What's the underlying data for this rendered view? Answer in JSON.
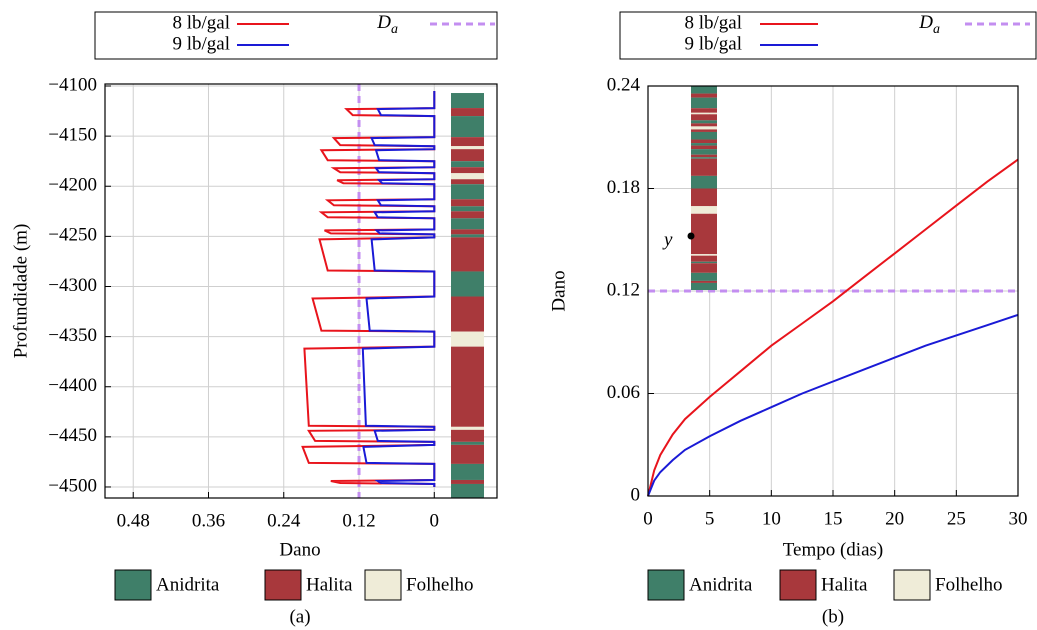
{
  "chart_data": [
    {
      "type": "line",
      "panel_label": "(a)",
      "xlabel": "Dano",
      "ylabel": "Profundidade (m)",
      "xlim": [
        0.525,
        -0.1
      ],
      "xticks": [
        0.48,
        0.36,
        0.24,
        0.12,
        0
      ],
      "ylim": [
        -4511,
        -4098
      ],
      "yticks": [
        {
          "value": -4100,
          "label": "−4100"
        },
        {
          "value": -4150,
          "label": "−4150"
        },
        {
          "value": -4200,
          "label": "−4200"
        },
        {
          "value": -4250,
          "label": "−4250"
        },
        {
          "value": -4300,
          "label": "−4300"
        },
        {
          "value": -4350,
          "label": "−4350"
        },
        {
          "value": -4400,
          "label": "−4400"
        },
        {
          "value": -4450,
          "label": "−4450"
        },
        {
          "value": -4500,
          "label": "−4500"
        }
      ],
      "grid": true,
      "series": [
        {
          "name": "8 lb/gal",
          "color": "#e8141c",
          "x": [
            0,
            0,
            0.14,
            0.13,
            0,
            0,
            0.16,
            0.15,
            0,
            0,
            0.18,
            0.17,
            0,
            0,
            0.16,
            0.15,
            0,
            0,
            0.155,
            0.145,
            0,
            0,
            0.17,
            0.16,
            0,
            0,
            0.18,
            0.17,
            0,
            0,
            0.175,
            0.165,
            0,
            0,
            0.183,
            0.17,
            0,
            0,
            0.194,
            0.18,
            0,
            0,
            0.207,
            0.2,
            0,
            0,
            0.2,
            0.19,
            0,
            0,
            0.21,
            0.2,
            0,
            0,
            0.165,
            0.15,
            0,
            0
          ],
          "y": [
            -4105,
            -4122,
            -4123,
            -4129,
            -4130,
            -4151,
            -4152,
            -4159,
            -4160,
            -4163,
            -4164,
            -4174,
            -4175,
            -4181,
            -4182,
            -4186,
            -4187,
            -4193,
            -4194,
            -4197,
            -4198,
            -4213,
            -4214,
            -4219,
            -4220,
            -4225,
            -4226,
            -4231,
            -4232,
            -4243,
            -4244,
            -4247,
            -4248,
            -4251,
            -4253,
            -4284,
            -4285,
            -4310,
            -4312,
            -4344,
            -4345,
            -4360,
            -4362,
            -4439,
            -4440,
            -4443,
            -4444,
            -4454,
            -4455,
            -4458,
            -4460,
            -4476,
            -4477,
            -4493,
            -4494,
            -4496,
            -4497,
            -4500
          ]
        },
        {
          "name": "9 lb/gal",
          "color": "#1a1ad6",
          "x": [
            0,
            0,
            0.09,
            0.085,
            0,
            0,
            0.1,
            0.095,
            0,
            0,
            0.093,
            0.088,
            0,
            0,
            0.093,
            0.088,
            0,
            0,
            0.088,
            0.083,
            0,
            0,
            0.09,
            0.085,
            0,
            0,
            0.095,
            0.09,
            0,
            0,
            0.092,
            0.087,
            0,
            0,
            0.1,
            0.095,
            0,
            0,
            0.108,
            0.103,
            0,
            0,
            0.114,
            0.109,
            0,
            0,
            0.095,
            0.09,
            0,
            0,
            0.113,
            0.108,
            0,
            0,
            0.09,
            0.085,
            0,
            0
          ],
          "y": [
            -4105,
            -4122,
            -4123,
            -4129,
            -4130,
            -4151,
            -4152,
            -4159,
            -4160,
            -4163,
            -4164,
            -4174,
            -4175,
            -4181,
            -4182,
            -4186,
            -4187,
            -4193,
            -4194,
            -4197,
            -4198,
            -4213,
            -4214,
            -4219,
            -4220,
            -4225,
            -4226,
            -4231,
            -4232,
            -4243,
            -4244,
            -4247,
            -4248,
            -4251,
            -4253,
            -4284,
            -4285,
            -4310,
            -4312,
            -4344,
            -4345,
            -4360,
            -4362,
            -4439,
            -4440,
            -4443,
            -4444,
            -4454,
            -4455,
            -4458,
            -4460,
            -4476,
            -4477,
            -4493,
            -4494,
            -4496,
            -4497,
            -4500
          ]
        }
      ],
      "threshold": {
        "name": "D",
        "subscript": "a",
        "value": 0.12,
        "color": "#c38ef0",
        "orientation": "vertical"
      },
      "strata": [
        [
          -4107,
          -4122,
          0
        ],
        [
          -4122,
          -4130,
          1
        ],
        [
          -4130,
          -4151,
          0
        ],
        [
          -4151,
          -4160,
          1
        ],
        [
          -4160,
          -4163,
          2
        ],
        [
          -4163,
          -4175,
          1
        ],
        [
          -4175,
          -4181,
          0
        ],
        [
          -4181,
          -4187,
          1
        ],
        [
          -4187,
          -4193,
          2
        ],
        [
          -4193,
          -4198,
          1
        ],
        [
          -4198,
          -4213,
          0
        ],
        [
          -4213,
          -4220,
          1
        ],
        [
          -4220,
          -4225,
          0
        ],
        [
          -4225,
          -4232,
          1
        ],
        [
          -4232,
          -4243,
          0
        ],
        [
          -4243,
          -4248,
          1
        ],
        [
          -4248,
          -4251,
          0
        ],
        [
          -4251,
          -4285,
          1
        ],
        [
          -4285,
          -4310,
          0
        ],
        [
          -4310,
          -4345,
          1
        ],
        [
          -4345,
          -4360,
          2
        ],
        [
          -4360,
          -4440,
          1
        ],
        [
          -4440,
          -4443,
          2
        ],
        [
          -4443,
          -4455,
          1
        ],
        [
          -4455,
          -4458,
          0
        ],
        [
          -4458,
          -4477,
          1
        ],
        [
          -4477,
          -4493,
          0
        ],
        [
          -4493,
          -4497,
          1
        ],
        [
          -4497,
          -4511,
          0
        ]
      ],
      "strata_legend": [
        {
          "name": "Anidrita",
          "color": "#3f7f69"
        },
        {
          "name": "Halita",
          "color": "#a8383c"
        },
        {
          "name": "Folhelho",
          "color": "#efecd8"
        }
      ]
    },
    {
      "type": "line",
      "panel_label": "(b)",
      "xlabel": "Tempo (dias)",
      "ylabel": "Dano",
      "xlim": [
        0,
        30
      ],
      "xticks": [
        0,
        5,
        10,
        15,
        20,
        25,
        30
      ],
      "ylim": [
        0,
        0.24
      ],
      "yticks": [
        0,
        0.06,
        0.12,
        0.18,
        0.24
      ],
      "grid": true,
      "series": [
        {
          "name": "8 lb/gal",
          "color": "#e8141c",
          "x": [
            0,
            0.5,
            1,
            2,
            3,
            5,
            7.5,
            10,
            12.5,
            15,
            17.5,
            20,
            22.5,
            25,
            27.5,
            30
          ],
          "y": [
            0,
            0.015,
            0.024,
            0.036,
            0.045,
            0.058,
            0.073,
            0.088,
            0.101,
            0.114,
            0.128,
            0.142,
            0.156,
            0.17,
            0.184,
            0.197
          ]
        },
        {
          "name": "9 lb/gal",
          "color": "#1a1ad6",
          "x": [
            0,
            0.5,
            1,
            2,
            3,
            5,
            7.5,
            10,
            12.5,
            15,
            17.5,
            20,
            22.5,
            25,
            27.5,
            30
          ],
          "y": [
            0,
            0.009,
            0.014,
            0.021,
            0.027,
            0.035,
            0.044,
            0.052,
            0.06,
            0.067,
            0.074,
            0.081,
            0.088,
            0.094,
            0.1,
            0.106
          ]
        }
      ],
      "threshold": {
        "name": "D",
        "subscript": "a",
        "value": 0.12,
        "color": "#c38ef0",
        "orientation": "horizontal"
      },
      "annotation": "y",
      "strata_legend": [
        {
          "name": "Anidrita",
          "color": "#3f7f69"
        },
        {
          "name": "Halita",
          "color": "#a8383c"
        },
        {
          "name": "Folhelho",
          "color": "#efecd8"
        }
      ]
    }
  ]
}
